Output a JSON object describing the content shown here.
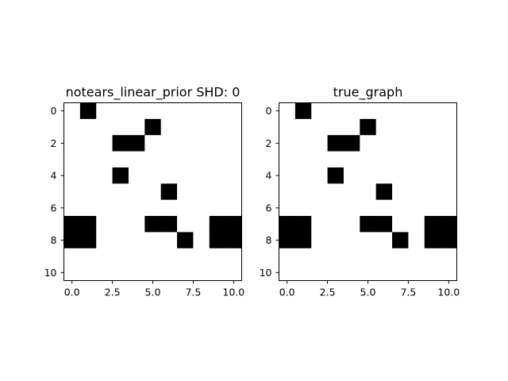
{
  "chart_data": [
    {
      "type": "heatmap",
      "title": "notears_linear_prior SHD: 0",
      "xlabel": "",
      "ylabel": "",
      "size": 11,
      "xlim": [
        -0.5,
        10.5
      ],
      "ylim": [
        10.5,
        -0.5
      ],
      "xticks": [
        "0.0",
        "2.5",
        "5.0",
        "7.5",
        "10.0"
      ],
      "yticks": [
        "0",
        "2",
        "4",
        "6",
        "8",
        "10"
      ],
      "colormap": {
        "0": "#ffffff",
        "1": "#000000"
      },
      "grid": false,
      "matrix": [
        [
          0,
          1,
          0,
          0,
          0,
          0,
          0,
          0,
          0,
          0,
          0
        ],
        [
          0,
          0,
          0,
          0,
          0,
          1,
          0,
          0,
          0,
          0,
          0
        ],
        [
          0,
          0,
          0,
          1,
          1,
          0,
          0,
          0,
          0,
          0,
          0
        ],
        [
          0,
          0,
          0,
          0,
          0,
          0,
          0,
          0,
          0,
          0,
          0
        ],
        [
          0,
          0,
          0,
          1,
          0,
          0,
          0,
          0,
          0,
          0,
          0
        ],
        [
          0,
          0,
          0,
          0,
          0,
          0,
          1,
          0,
          0,
          0,
          0
        ],
        [
          0,
          0,
          0,
          0,
          0,
          0,
          0,
          0,
          0,
          0,
          0
        ],
        [
          1,
          1,
          0,
          0,
          0,
          1,
          1,
          0,
          0,
          1,
          1
        ],
        [
          1,
          1,
          0,
          0,
          0,
          0,
          0,
          1,
          0,
          1,
          1
        ],
        [
          0,
          0,
          0,
          0,
          0,
          0,
          0,
          0,
          0,
          0,
          0
        ],
        [
          0,
          0,
          0,
          0,
          0,
          0,
          0,
          0,
          0,
          0,
          0
        ]
      ]
    },
    {
      "type": "heatmap",
      "title": "true_graph",
      "xlabel": "",
      "ylabel": "",
      "size": 11,
      "xlim": [
        -0.5,
        10.5
      ],
      "ylim": [
        10.5,
        -0.5
      ],
      "xticks": [
        "0.0",
        "2.5",
        "5.0",
        "7.5",
        "10.0"
      ],
      "yticks": [
        "0",
        "2",
        "4",
        "6",
        "8",
        "10"
      ],
      "colormap": {
        "0": "#ffffff",
        "1": "#000000"
      },
      "grid": false,
      "matrix": [
        [
          0,
          1,
          0,
          0,
          0,
          0,
          0,
          0,
          0,
          0,
          0
        ],
        [
          0,
          0,
          0,
          0,
          0,
          1,
          0,
          0,
          0,
          0,
          0
        ],
        [
          0,
          0,
          0,
          1,
          1,
          0,
          0,
          0,
          0,
          0,
          0
        ],
        [
          0,
          0,
          0,
          0,
          0,
          0,
          0,
          0,
          0,
          0,
          0
        ],
        [
          0,
          0,
          0,
          1,
          0,
          0,
          0,
          0,
          0,
          0,
          0
        ],
        [
          0,
          0,
          0,
          0,
          0,
          0,
          1,
          0,
          0,
          0,
          0
        ],
        [
          0,
          0,
          0,
          0,
          0,
          0,
          0,
          0,
          0,
          0,
          0
        ],
        [
          1,
          1,
          0,
          0,
          0,
          1,
          1,
          0,
          0,
          1,
          1
        ],
        [
          1,
          1,
          0,
          0,
          0,
          0,
          0,
          1,
          0,
          1,
          1
        ],
        [
          0,
          0,
          0,
          0,
          0,
          0,
          0,
          0,
          0,
          0,
          0
        ],
        [
          0,
          0,
          0,
          0,
          0,
          0,
          0,
          0,
          0,
          0,
          0
        ]
      ]
    }
  ]
}
